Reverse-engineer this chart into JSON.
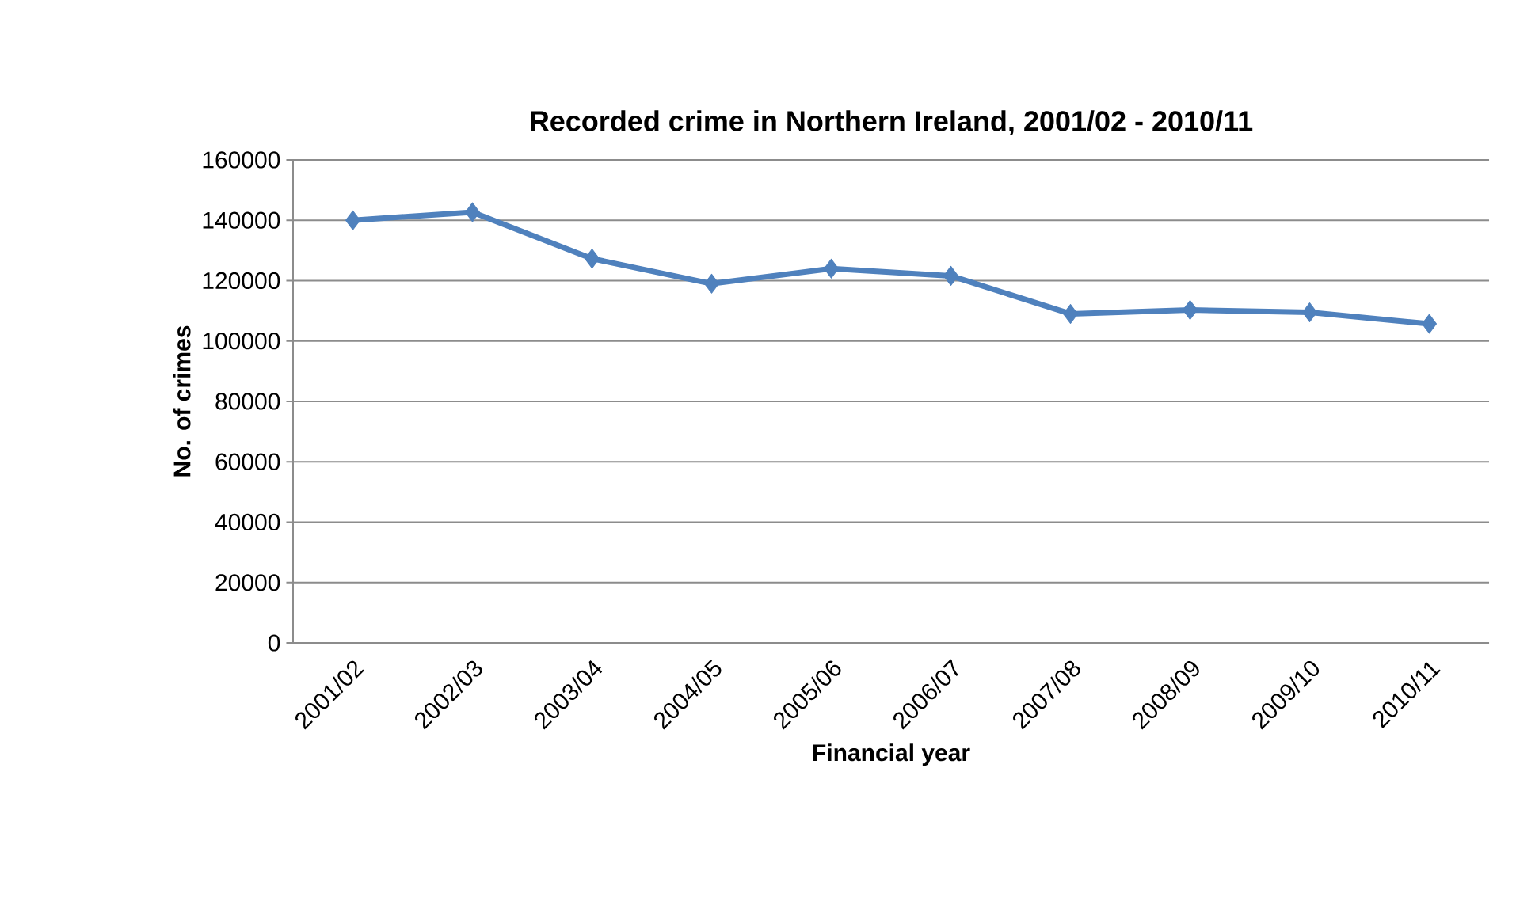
{
  "chart_data": {
    "type": "line",
    "title": "Recorded crime in Northern Ireland, 2001/02 - 2010/11",
    "xlabel": "Financial year",
    "ylabel": "No. of crimes",
    "categories": [
      "2001/02",
      "2002/03",
      "2003/04",
      "2004/05",
      "2005/06",
      "2006/07",
      "2007/08",
      "2008/09",
      "2009/10",
      "2010/11"
    ],
    "series": [
      {
        "color": "#4f81bd",
        "values": [
          140000,
          142700,
          127300,
          119000,
          124000,
          121600,
          109000,
          110300,
          109500,
          105700
        ]
      }
    ],
    "ylim": [
      0,
      160000
    ],
    "yticks": [
      0,
      20000,
      40000,
      60000,
      80000,
      100000,
      120000,
      140000,
      160000
    ],
    "grid": "y",
    "marker": "diamond",
    "line_style": "solid"
  }
}
